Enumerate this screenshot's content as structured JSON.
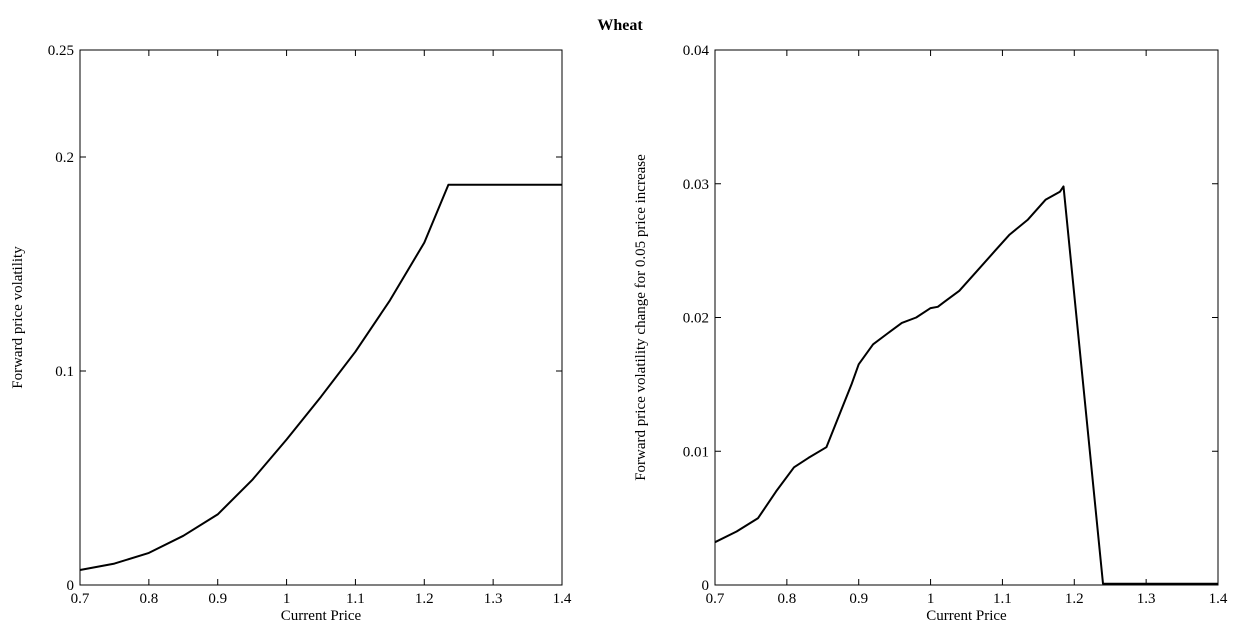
{
  "title": "Wheat",
  "chart_data": [
    {
      "type": "line",
      "xlabel": "Current Price",
      "ylabel": "Forward price volatility",
      "xlim": [
        0.7,
        1.4
      ],
      "ylim": [
        0,
        0.25
      ],
      "xticks": [
        0.7,
        0.8,
        0.9,
        1,
        1.1,
        1.2,
        1.3,
        1.4
      ],
      "xtick_labels": [
        "0.7",
        "0.8",
        "0.9",
        "1",
        "1.1",
        "1.2",
        "1.3",
        "1.4"
      ],
      "yticks": [
        0,
        0.1,
        0.2,
        0.25
      ],
      "ytick_labels": [
        "0",
        "0.1",
        "0.2",
        "0.25"
      ],
      "grid": false,
      "line_color": "#000000",
      "series": [
        {
          "x": [
            0.7,
            0.75,
            0.8,
            0.85,
            0.9,
            0.95,
            1.0,
            1.05,
            1.1,
            1.15,
            1.2,
            1.235,
            1.3,
            1.4
          ],
          "y": [
            0.007,
            0.01,
            0.015,
            0.023,
            0.033,
            0.049,
            0.068,
            0.088,
            0.109,
            0.133,
            0.16,
            0.187,
            0.187,
            0.187
          ]
        }
      ]
    },
    {
      "type": "line",
      "xlabel": "Current Price",
      "ylabel": "Forward price volatility change for 0.05 price increase",
      "xlim": [
        0.7,
        1.4
      ],
      "ylim": [
        0,
        0.04
      ],
      "xticks": [
        0.7,
        0.8,
        0.9,
        1,
        1.1,
        1.2,
        1.3,
        1.4
      ],
      "xtick_labels": [
        "0.7",
        "0.8",
        "0.9",
        "1",
        "1.1",
        "1.2",
        "1.3",
        "1.4"
      ],
      "yticks": [
        0,
        0.01,
        0.02,
        0.03,
        0.04
      ],
      "ytick_labels": [
        "0",
        "0.01",
        "0.02",
        "0.03",
        "0.04"
      ],
      "grid": false,
      "line_color": "#000000",
      "series": [
        {
          "x": [
            0.7,
            0.73,
            0.76,
            0.785,
            0.81,
            0.83,
            0.855,
            0.875,
            0.89,
            0.9,
            0.92,
            0.94,
            0.96,
            0.98,
            1.0,
            1.01,
            1.02,
            1.04,
            1.065,
            1.09,
            1.11,
            1.135,
            1.16,
            1.18,
            1.185,
            1.24,
            1.3,
            1.4
          ],
          "y": [
            0.0032,
            0.004,
            0.005,
            0.007,
            0.0088,
            0.0095,
            0.0103,
            0.013,
            0.015,
            0.0165,
            0.018,
            0.0188,
            0.0196,
            0.02,
            0.0207,
            0.0208,
            0.0212,
            0.022,
            0.0235,
            0.025,
            0.0262,
            0.0273,
            0.0288,
            0.0294,
            0.0298,
            0.0001,
            0.0001,
            0.0001
          ]
        }
      ]
    }
  ]
}
